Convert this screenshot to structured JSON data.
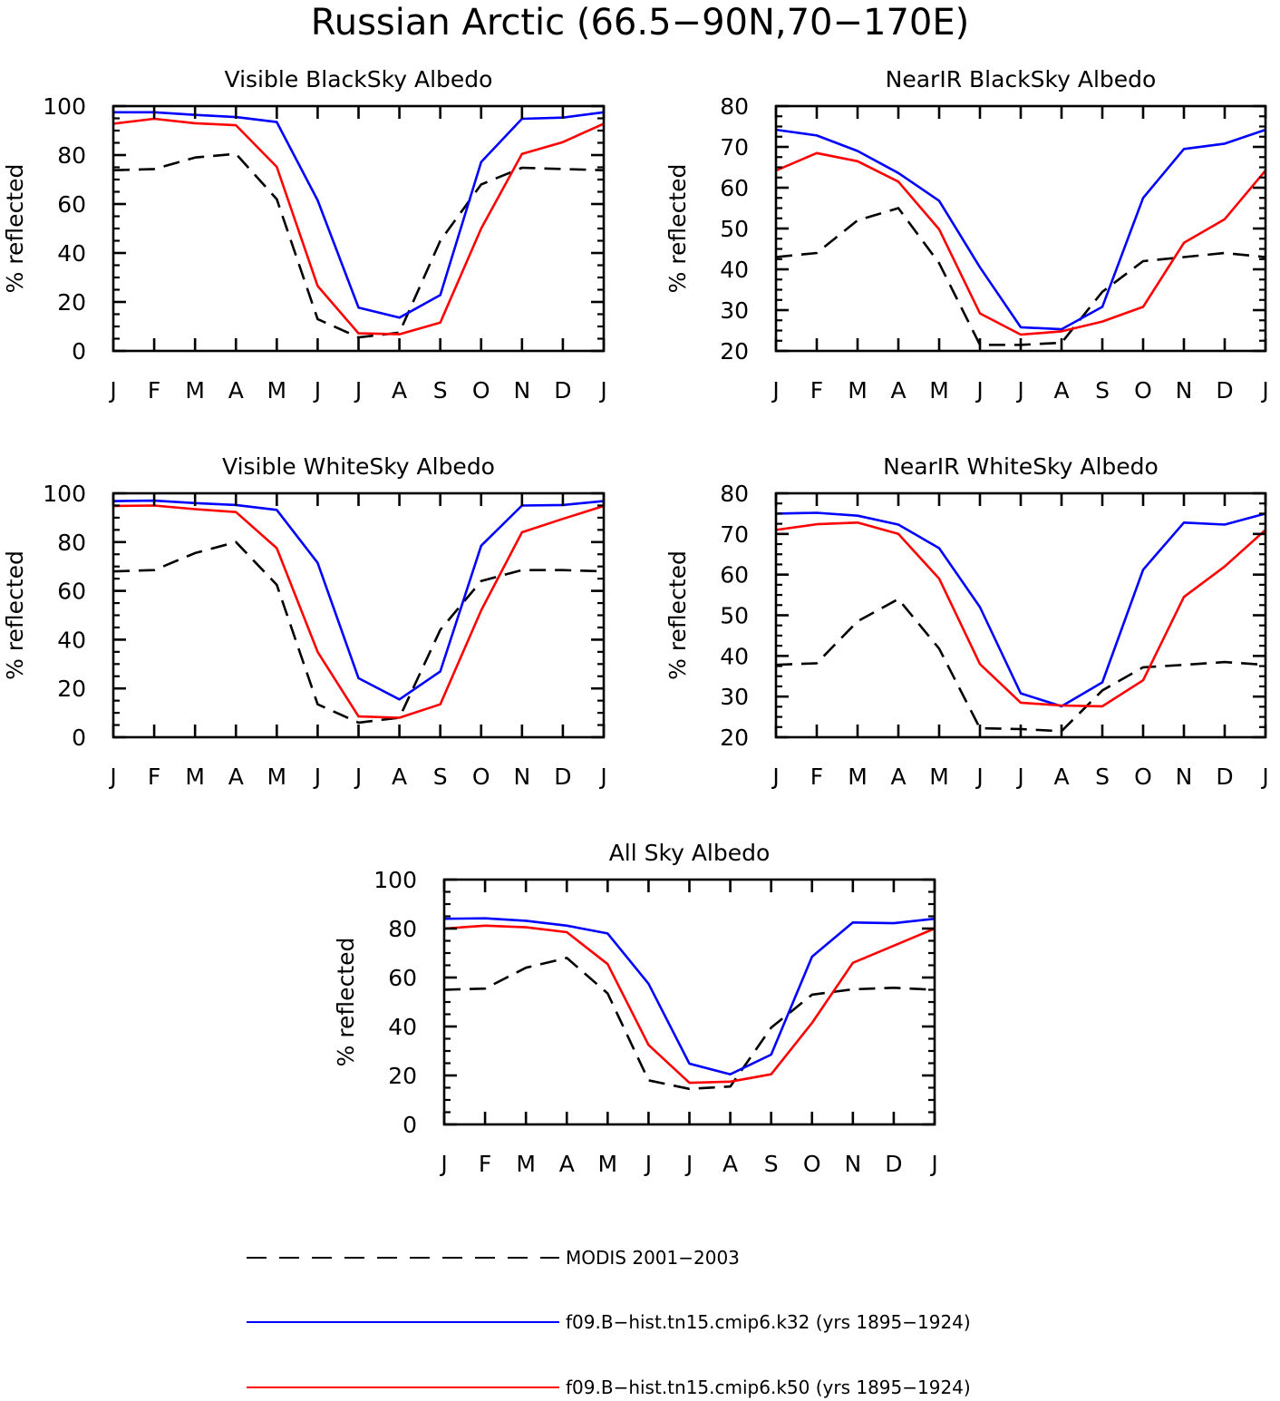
{
  "title": "Russian Arctic (66.5−90N,70−170E)",
  "months": [
    "J",
    "F",
    "M",
    "A",
    "M",
    "J",
    "J",
    "A",
    "S",
    "O",
    "N",
    "D",
    "J"
  ],
  "colors": {
    "modis": "#000000",
    "k32": "#0000ff",
    "k50": "#ff0000"
  },
  "legend": [
    {
      "key": "modis",
      "label": "MODIS 2001−2003",
      "style": "dashed"
    },
    {
      "key": "k32",
      "label": "f09.B−hist.tn15.cmip6.k32 (yrs 1895−1924)",
      "style": "solid"
    },
    {
      "key": "k50",
      "label": "f09.B−hist.tn15.cmip6.k50 (yrs 1895−1924)",
      "style": "solid"
    }
  ],
  "chart_data": [
    {
      "type": "line",
      "title": "Visible BlackSky Albedo",
      "ylabel": "% reflected",
      "ylim": [
        0,
        100
      ],
      "yticks": [
        0,
        20,
        40,
        60,
        80,
        100
      ],
      "series": [
        {
          "name": "MODIS 2001−2003",
          "key": "modis",
          "values": [
            73.8,
            74.3,
            79.0,
            80.5,
            62.0,
            13.0,
            5.5,
            7.5,
            45.0,
            68.0,
            74.8,
            74.3,
            73.8
          ]
        },
        {
          "name": "f09.B−hist.tn15.cmip6.k32 (yrs 1895−1924)",
          "key": "k32",
          "values": [
            97.5,
            97.5,
            96.4,
            95.5,
            93.5,
            61.5,
            17.7,
            13.6,
            22.8,
            77.2,
            94.8,
            95.3,
            97.5
          ]
        },
        {
          "name": "f09.B−hist.tn15.cmip6.k50 (yrs 1895−1924)",
          "key": "k50",
          "values": [
            92.8,
            94.8,
            93.0,
            92.2,
            75.2,
            26.5,
            7.2,
            6.8,
            11.6,
            50.0,
            80.5,
            85.3,
            92.8
          ]
        }
      ]
    },
    {
      "type": "line",
      "title": "NearIR BlackSky Albedo",
      "ylabel": "% reflected",
      "ylim": [
        20,
        80
      ],
      "yticks": [
        20,
        30,
        40,
        50,
        60,
        70,
        80
      ],
      "series": [
        {
          "name": "MODIS 2001−2003",
          "key": "modis",
          "values": [
            43.0,
            44.0,
            52.0,
            55.0,
            41.5,
            21.5,
            21.5,
            22.0,
            34.5,
            42.0,
            43.0,
            44.0,
            43.0
          ]
        },
        {
          "name": "f09.B−hist.tn15.cmip6.k32 (yrs 1895−1924)",
          "key": "k32",
          "values": [
            74.2,
            72.8,
            69.0,
            63.6,
            56.8,
            40.5,
            25.8,
            25.3,
            30.8,
            57.5,
            69.5,
            70.8,
            74.2
          ]
        },
        {
          "name": "f09.B−hist.tn15.cmip6.k50 (yrs 1895−1924)",
          "key": "k50",
          "values": [
            64.2,
            68.5,
            66.5,
            61.5,
            49.8,
            29.2,
            24.0,
            24.8,
            27.2,
            30.8,
            46.5,
            52.3,
            64.2
          ]
        }
      ]
    },
    {
      "type": "line",
      "title": "Visible WhiteSky Albedo",
      "ylabel": "% reflected",
      "ylim": [
        0,
        100
      ],
      "yticks": [
        0,
        20,
        40,
        60,
        80,
        100
      ],
      "series": [
        {
          "name": "MODIS 2001−2003",
          "key": "modis",
          "values": [
            68.0,
            68.5,
            75.5,
            80.0,
            62.5,
            13.5,
            6.0,
            8.0,
            44.0,
            64.0,
            68.5,
            68.5,
            68.0
          ]
        },
        {
          "name": "f09.B−hist.tn15.cmip6.k32 (yrs 1895−1924)",
          "key": "k32",
          "values": [
            96.8,
            97.0,
            96.0,
            95.2,
            93.2,
            71.5,
            24.2,
            15.5,
            27.0,
            78.5,
            95.0,
            95.2,
            96.8
          ]
        },
        {
          "name": "f09.B−hist.tn15.cmip6.k50 (yrs 1895−1924)",
          "key": "k50",
          "values": [
            94.8,
            95.0,
            93.5,
            92.3,
            77.5,
            35.0,
            8.5,
            8.0,
            13.5,
            52.0,
            84.0,
            89.5,
            94.8
          ]
        }
      ]
    },
    {
      "type": "line",
      "title": "NearIR WhiteSky Albedo",
      "ylabel": "% reflected",
      "ylim": [
        20,
        80
      ],
      "yticks": [
        20,
        30,
        40,
        50,
        60,
        70,
        80
      ],
      "series": [
        {
          "name": "MODIS 2001−2003",
          "key": "modis",
          "values": [
            37.8,
            38.2,
            48.5,
            54.0,
            41.8,
            22.2,
            22.0,
            21.5,
            31.5,
            37.2,
            37.8,
            38.5,
            37.8
          ]
        },
        {
          "name": "f09.B−hist.tn15.cmip6.k32 (yrs 1895−1924)",
          "key": "k32",
          "values": [
            75.0,
            75.2,
            74.5,
            72.3,
            66.5,
            52.0,
            30.8,
            27.6,
            33.5,
            61.2,
            72.8,
            72.3,
            75.0
          ]
        },
        {
          "name": "f09.B−hist.tn15.cmip6.k50 (yrs 1895−1924)",
          "key": "k50",
          "values": [
            71.0,
            72.4,
            72.8,
            70.0,
            59.0,
            38.0,
            28.5,
            27.8,
            27.6,
            34.0,
            54.5,
            62.0,
            71.0
          ]
        }
      ]
    },
    {
      "type": "line",
      "title": "All Sky Albedo",
      "ylabel": "% reflected",
      "ylim": [
        0,
        100
      ],
      "yticks": [
        0,
        20,
        40,
        60,
        80,
        100
      ],
      "series": [
        {
          "name": "MODIS 2001−2003",
          "key": "modis",
          "values": [
            55.0,
            55.5,
            64.0,
            68.0,
            53.5,
            18.0,
            14.5,
            15.5,
            39.5,
            53.0,
            55.2,
            55.8,
            55.0
          ]
        },
        {
          "name": "f09.B−hist.tn15.cmip6.k32 (yrs 1895−1924)",
          "key": "k32",
          "values": [
            84.0,
            84.2,
            83.2,
            81.2,
            78.0,
            57.5,
            24.8,
            20.5,
            28.5,
            68.5,
            82.5,
            82.2,
            84.0
          ]
        },
        {
          "name": "f09.B−hist.tn15.cmip6.k50 (yrs 1895−1924)",
          "key": "k50",
          "values": [
            80.0,
            81.2,
            80.5,
            78.5,
            65.5,
            32.5,
            17.0,
            17.5,
            20.5,
            41.5,
            66.0,
            73.0,
            80.0
          ]
        }
      ]
    }
  ]
}
